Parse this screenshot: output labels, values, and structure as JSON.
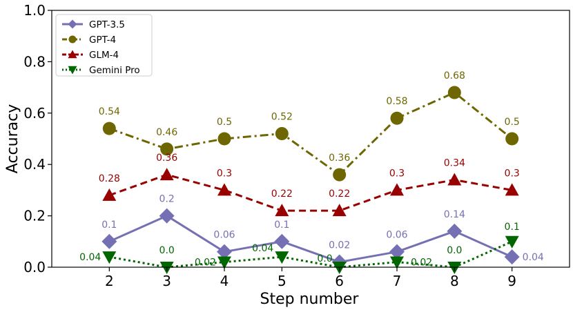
{
  "chart_data": {
    "type": "line",
    "title": "",
    "xlabel": "Step number",
    "ylabel": "Accuracy",
    "categories": [
      "2",
      "3",
      "4",
      "5",
      "6",
      "7",
      "8",
      "9"
    ],
    "x": [
      2,
      3,
      4,
      5,
      6,
      7,
      8,
      9
    ],
    "xlim": [
      1,
      10
    ],
    "ylim": [
      0,
      1.0
    ],
    "yticks": [
      0.0,
      0.2,
      0.4,
      0.6,
      0.8,
      1.0
    ],
    "ytick_labels": [
      "0.0",
      "0.2",
      "0.4",
      "0.6",
      "0.8",
      "1.0"
    ],
    "grid": false,
    "legend_position": "top-left",
    "series": [
      {
        "name": "GPT-3.5",
        "values": [
          0.1,
          0.2,
          0.06,
          0.1,
          0.02,
          0.06,
          0.14,
          0.04
        ],
        "labels": [
          "0.1",
          "0.2",
          "0.06",
          "0.1",
          "0.02",
          "0.06",
          "0.14",
          "0.04"
        ],
        "color": "#7570b3",
        "marker": "diamond",
        "line_style": "solid"
      },
      {
        "name": "GPT-4",
        "values": [
          0.54,
          0.46,
          0.5,
          0.52,
          0.36,
          0.58,
          0.68,
          0.5
        ],
        "labels": [
          "0.54",
          "0.46",
          "0.5",
          "0.52",
          "0.36",
          "0.58",
          "0.68",
          "0.5"
        ],
        "color": "#6e6600",
        "marker": "circle",
        "line_style": "dash-dot"
      },
      {
        "name": "GLM-4",
        "values": [
          0.28,
          0.36,
          0.3,
          0.22,
          0.22,
          0.3,
          0.34,
          0.3
        ],
        "labels": [
          "0.28",
          "0.36",
          "0.3",
          "0.22",
          "0.22",
          "0.3",
          "0.34",
          "0.3"
        ],
        "color": "#990000",
        "marker": "triangle-up",
        "line_style": "dashed"
      },
      {
        "name": "Gemini Pro",
        "values": [
          0.04,
          0.0,
          0.02,
          0.04,
          0.0,
          0.02,
          0.0,
          0.1
        ],
        "labels": [
          "0.04",
          "0.0",
          "0.02",
          "0.04",
          "0.0",
          "0.02",
          "0.0",
          "0.1"
        ],
        "color": "#006600",
        "marker": "triangle-down",
        "line_style": "dotted"
      }
    ]
  }
}
